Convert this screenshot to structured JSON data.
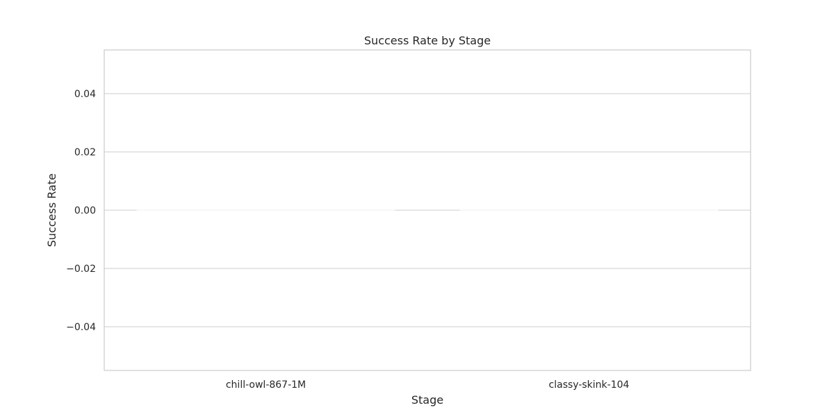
{
  "chart_data": {
    "type": "bar",
    "title": "Success Rate by Stage",
    "xlabel": "Stage",
    "ylabel": "Success Rate",
    "categories": [
      "chill-owl-867-1M",
      "classy-skink-104"
    ],
    "values": [
      0.0,
      0.0
    ],
    "ylim": [
      -0.055,
      0.055
    ],
    "yticks": [
      0.04,
      0.02,
      0.0,
      -0.02,
      -0.04
    ],
    "ytick_labels": [
      "0.04",
      "0.02",
      "0.00",
      "−0.02",
      "−0.04"
    ],
    "grid": true,
    "legend": "none"
  },
  "colors": {
    "grid": "#cccccc",
    "frame": "#cccccc",
    "bar": "#f2f2f2",
    "text": "#262626",
    "background": "#ffffff"
  }
}
